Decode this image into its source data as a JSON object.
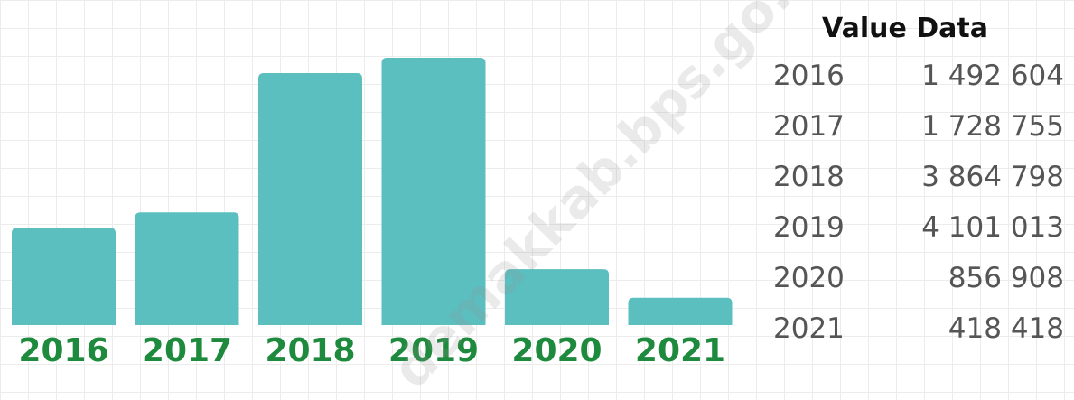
{
  "chart_data": {
    "type": "bar",
    "categories": [
      "2016",
      "2017",
      "2018",
      "2019",
      "2020",
      "2021"
    ],
    "values": [
      1492604,
      1728755,
      3864798,
      4101013,
      856908,
      418418
    ],
    "ylim": [
      0,
      4101013
    ],
    "grid": true,
    "bar_color": "#5bbfc0",
    "label_color": "#1e8a3d"
  },
  "table": {
    "title": "Value Data",
    "rows": [
      {
        "year": "2016",
        "value": "1 492 604"
      },
      {
        "year": "2017",
        "value": "1 728 755"
      },
      {
        "year": "2018",
        "value": "3 864 798"
      },
      {
        "year": "2019",
        "value": "4 101 013"
      },
      {
        "year": "2020",
        "value": "856 908"
      },
      {
        "year": "2021",
        "value": "418 418"
      }
    ]
  },
  "watermark": "demakkab.bps.go.id"
}
